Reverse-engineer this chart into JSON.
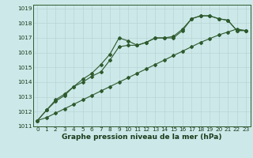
{
  "title": "Graphe pression niveau de la mer (hPa)",
  "bg_color": "#cce8e8",
  "grid_color": "#b8d4d4",
  "line_color": "#2d5a2d",
  "xlim": [
    -0.5,
    23.5
  ],
  "ylim": [
    1011,
    1019.25
  ],
  "xticks": [
    0,
    1,
    2,
    3,
    4,
    5,
    6,
    7,
    8,
    9,
    10,
    11,
    12,
    13,
    14,
    15,
    16,
    17,
    18,
    19,
    20,
    21,
    22,
    23
  ],
  "yticks": [
    1011,
    1012,
    1013,
    1014,
    1015,
    1016,
    1017,
    1018,
    1019
  ],
  "tick_fontsize": 5.2,
  "xlabel_fontsize": 6.5,
  "series": [
    [
      1011.4,
      1012.1,
      1012.7,
      1013.1,
      1013.7,
      1014.2,
      1014.6,
      1015.2,
      1015.9,
      1017.0,
      1016.8,
      1016.5,
      1016.7,
      1017.0,
      1017.0,
      1017.1,
      1017.6,
      1018.3,
      1018.5,
      1018.5,
      1018.3,
      1018.2,
      1017.5,
      1017.5
    ],
    [
      1011.4,
      1012.1,
      1012.8,
      1013.2,
      1013.7,
      1014.0,
      1014.4,
      1014.7,
      1015.5,
      1016.4,
      1016.5,
      1016.5,
      1016.7,
      1017.0,
      1017.0,
      1017.0,
      1017.5,
      1018.3,
      1018.5,
      1018.5,
      1018.3,
      1018.2,
      1017.5,
      1017.5
    ],
    [
      1011.4,
      1011.6,
      1011.9,
      1012.2,
      1012.5,
      1012.8,
      1013.1,
      1013.4,
      1013.7,
      1014.0,
      1014.3,
      1014.6,
      1014.9,
      1015.2,
      1015.5,
      1015.8,
      1016.1,
      1016.4,
      1016.7,
      1016.95,
      1017.2,
      1017.4,
      1017.6,
      1017.5
    ]
  ]
}
